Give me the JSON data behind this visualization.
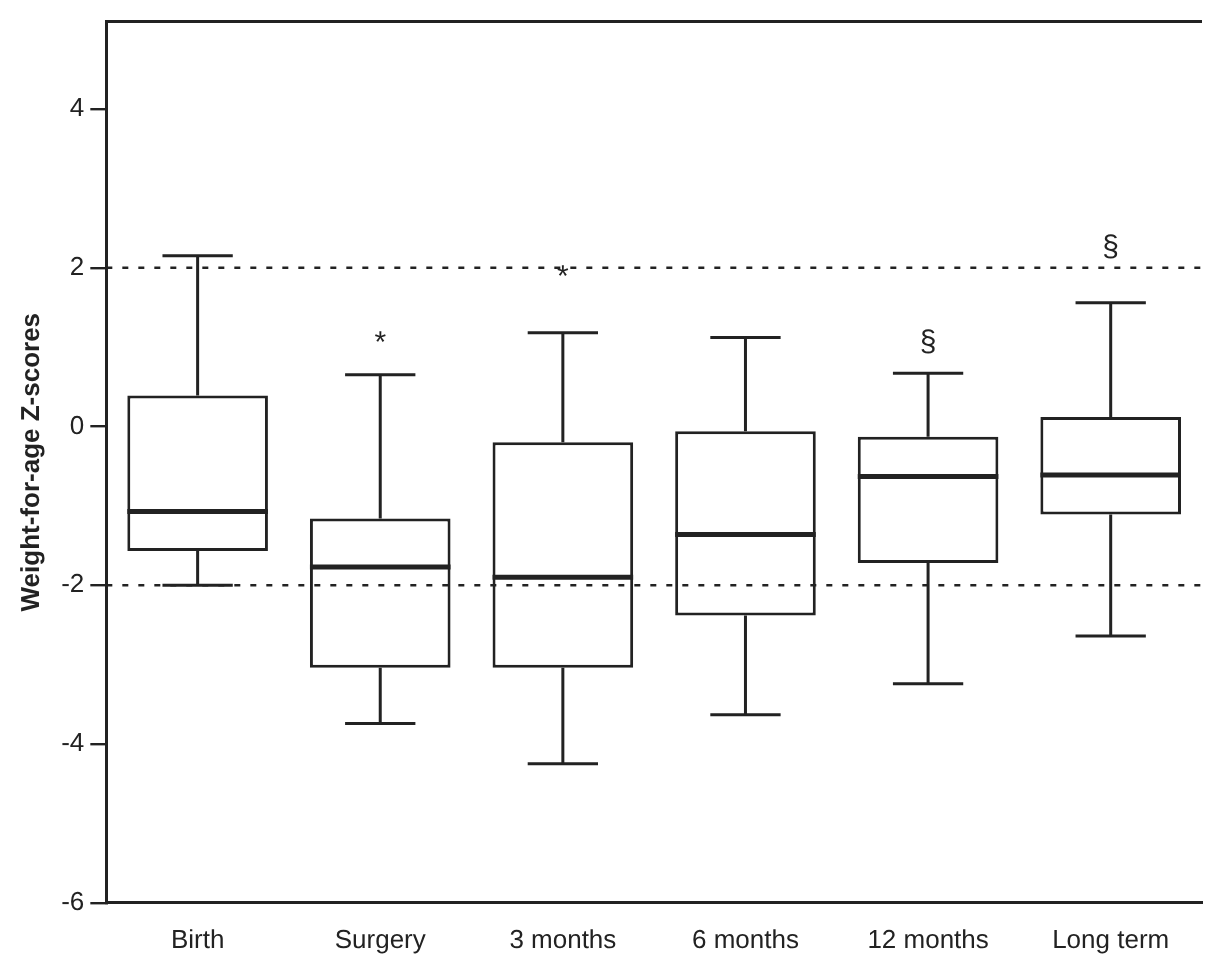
{
  "chart_data": {
    "type": "box",
    "ylabel": "Weight-for-age Z-scores",
    "categories": [
      "Birth",
      "Surgery",
      "3 months",
      "6 months",
      "12 months",
      "Long term"
    ],
    "boxes": [
      {
        "low": -2.0,
        "q1": -1.57,
        "median": -1.07,
        "q3": 0.39,
        "high": 2.15
      },
      {
        "low": -3.74,
        "q1": -3.04,
        "median": -1.77,
        "q3": -1.16,
        "high": 0.65
      },
      {
        "low": -4.25,
        "q1": -3.04,
        "median": -1.9,
        "q3": -0.2,
        "high": 1.18
      },
      {
        "low": -3.63,
        "q1": -2.38,
        "median": -1.36,
        "q3": -0.06,
        "high": 1.12
      },
      {
        "low": -3.24,
        "q1": -1.72,
        "median": -0.63,
        "q3": -0.13,
        "high": 0.67
      },
      {
        "low": -2.64,
        "q1": -1.11,
        "median": -0.61,
        "q3": 0.12,
        "high": 1.56
      }
    ],
    "ylim": [
      -6,
      5.1
    ],
    "yticks": [
      -6,
      -4,
      -2,
      0,
      2,
      4
    ],
    "ref_lines": [
      {
        "axis": "y",
        "value": 2,
        "line_style": "dotted"
      },
      {
        "axis": "y",
        "value": -2,
        "line_style": "dotted"
      }
    ],
    "annotations": [
      {
        "text": "*",
        "x": "Surgery",
        "y": 0.65
      },
      {
        "text": "*",
        "x": "3 months",
        "y": 1.18
      },
      {
        "text": "§",
        "x": "12 months",
        "y": 0.67
      },
      {
        "text": "§",
        "x": "Long term",
        "y": 1.56
      }
    ],
    "grid": false,
    "legend": false
  }
}
